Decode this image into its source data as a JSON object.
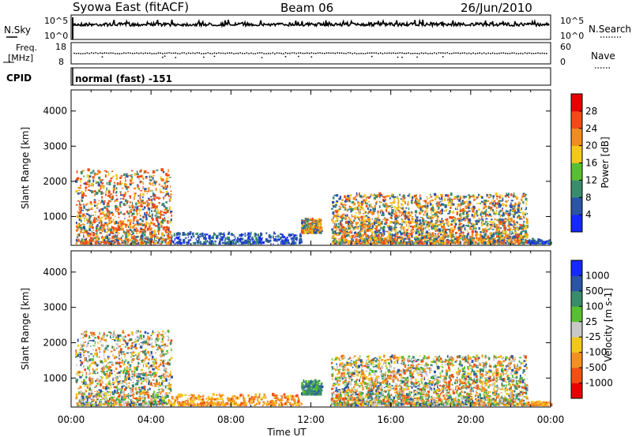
{
  "header": {
    "station": "Syowa East (fitACF)",
    "beam": "Beam 06",
    "date": "26/Jun/2010"
  },
  "strip_panels": {
    "nsky_label": "N.Sky",
    "nsky_ticks": [
      "10^5",
      "10^0"
    ],
    "nsearch_label": "N.Search",
    "nsearch_ticks": [
      "10^5",
      "10^0"
    ],
    "freq_label_1": "Freq.",
    "freq_label_2": "[MHz]",
    "freq_ticks": [
      "18",
      "8"
    ],
    "nave_label": "Nave",
    "nave_ticks": [
      "60",
      "0"
    ],
    "cpid_label": "CPID",
    "cpid_value": "normal (fast) -151"
  },
  "x_axis": {
    "label": "Time UT",
    "ticks": [
      "00:00",
      "04:00",
      "08:00",
      "12:00",
      "16:00",
      "20:00",
      "00:00"
    ]
  },
  "colors": {
    "power_scale": [
      "#1428ff",
      "#2a54a6",
      "#3a8c6e",
      "#58c030",
      "#f2c81c",
      "#f28c1c",
      "#f24a14",
      "#e60000"
    ],
    "velocity_scale": [
      "#e60000",
      "#f05010",
      "#f59020",
      "#f2c81c",
      "#c8c8c8",
      "#58c030",
      "#3a8c6e",
      "#2a54a6",
      "#1428ff"
    ]
  },
  "chart_data": [
    {
      "type": "heatmap",
      "title": "",
      "xlabel": "Time UT",
      "ylabel": "Slant Range [km]",
      "xlim": [
        "00:00",
        "24:00"
      ],
      "ylim": [
        180,
        4600
      ],
      "yticks": [
        "1000",
        "2000",
        "3000",
        "4000"
      ],
      "colorbar": {
        "label": "Power [dB]",
        "range": [
          0,
          32
        ],
        "ticks": [
          "4",
          "8",
          "12",
          "16",
          "20",
          "24",
          "28"
        ]
      },
      "echo_regions": [
        {
          "t_start": 0.2,
          "t_end": 5.0,
          "r_min": 200,
          "r_max": 2300,
          "level": "high"
        },
        {
          "t_start": 5.0,
          "t_end": 11.5,
          "r_min": 200,
          "r_max": 500,
          "level": "low"
        },
        {
          "t_start": 11.5,
          "t_end": 12.5,
          "r_min": 500,
          "r_max": 900,
          "level": "medium"
        },
        {
          "t_start": 13.0,
          "t_end": 22.8,
          "r_min": 200,
          "r_max": 1600,
          "level": "medium"
        },
        {
          "t_start": 22.8,
          "t_end": 24.0,
          "r_min": 200,
          "r_max": 300,
          "level": "low"
        }
      ]
    },
    {
      "type": "heatmap",
      "title": "",
      "xlabel": "Time UT",
      "ylabel": "Slant Range [km]",
      "xlim": [
        "00:00",
        "24:00"
      ],
      "ylim": [
        180,
        4600
      ],
      "yticks": [
        "1000",
        "2000",
        "3000",
        "4000"
      ],
      "colorbar": {
        "label": "Velocity [m s-1]",
        "range": [
          -1000,
          1000
        ],
        "ticks": [
          "1000",
          "500",
          "100",
          "25",
          "-25",
          "-100",
          "-500",
          "-1000"
        ]
      },
      "echo_regions": [
        {
          "t_start": 0.2,
          "t_end": 5.0,
          "r_min": 200,
          "r_max": 2300,
          "level": "mixed"
        },
        {
          "t_start": 5.0,
          "t_end": 11.5,
          "r_min": 200,
          "r_max": 500,
          "level": "negative"
        },
        {
          "t_start": 11.5,
          "t_end": 12.5,
          "r_min": 500,
          "r_max": 900,
          "level": "positive"
        },
        {
          "t_start": 13.0,
          "t_end": 22.8,
          "r_min": 200,
          "r_max": 1600,
          "level": "mixed"
        },
        {
          "t_start": 22.8,
          "t_end": 24.0,
          "r_min": 200,
          "r_max": 300,
          "level": "negative"
        }
      ]
    }
  ]
}
